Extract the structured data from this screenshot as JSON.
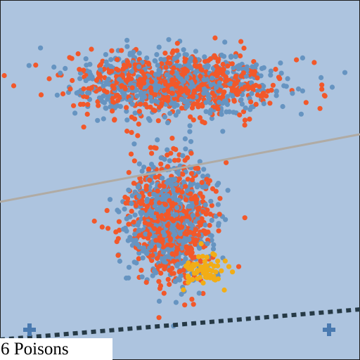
{
  "status": {
    "poison_count": 6,
    "poison_text": "6 Poisons"
  },
  "colors": {
    "background": "#adc4df",
    "frame": "#1a1a1a",
    "orange_points": "#f2582a",
    "blue_points": "#6694c1",
    "poison_points": "#f2ad16",
    "boundary_line": "#b0aba4",
    "dashed_line": "#263a46",
    "cross_markers": "#4a7ab0"
  },
  "icons": {
    "marker": "plus-icon"
  }
}
